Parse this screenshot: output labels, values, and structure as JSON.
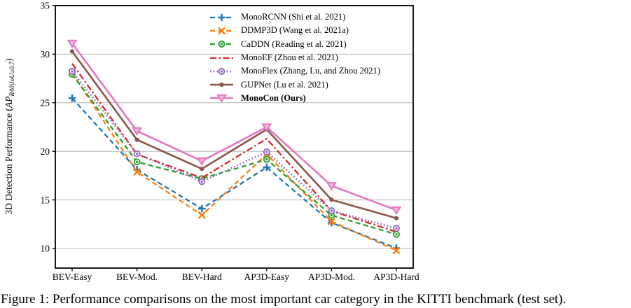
{
  "figure_caption": "Figure 1: Performance comparisons on the most important car category in the KITTI benchmark (test set).",
  "ylabel": {
    "prefix": "3D Detection Performance (",
    "ap": "AP",
    "subscript": "R40|IoU≥0.7",
    "suffix": ")"
  },
  "chart_data": {
    "type": "line",
    "title": "",
    "xlabel": "",
    "ylabel": "3D Detection Performance (AP_R40|IoU>=0.7)",
    "categories": [
      "BEV-Easy",
      "BEV-Mod.",
      "BEV-Hard",
      "AP3D-Easy",
      "AP3D-Mod.",
      "AP3D-Hard"
    ],
    "yticks": [
      10,
      15,
      20,
      25,
      30,
      35
    ],
    "ylim": [
      8,
      35
    ],
    "grid": true,
    "legend_position": "upper right",
    "series": [
      {
        "name": "MonoRCNN (Shi et al. 2021)",
        "color": "#1f77b4",
        "linestyle": "dashed",
        "marker": "plus",
        "bold": false,
        "values": [
          25.48,
          18.11,
          14.1,
          18.36,
          12.65,
          10.03
        ]
      },
      {
        "name": "DDMP3D (Wang et al. 2021a)",
        "color": "#ff7f0e",
        "linestyle": "dashed",
        "marker": "x",
        "bold": false,
        "values": [
          28.08,
          17.89,
          13.44,
          19.71,
          12.78,
          9.8
        ]
      },
      {
        "name": "CaDDN (Reading et al. 2021)",
        "color": "#2ca02c",
        "linestyle": "dashed",
        "marker": "ring-dot",
        "bold": false,
        "values": [
          27.94,
          18.91,
          17.19,
          19.17,
          13.41,
          11.46
        ]
      },
      {
        "name": "MonoEF (Zhou et al. 2021)",
        "color": "#d62728",
        "linestyle": "dashdot",
        "marker": "none",
        "bold": false,
        "values": [
          29.03,
          19.7,
          17.26,
          21.29,
          13.87,
          11.71
        ]
      },
      {
        "name": "MonoFlex (Zhang, Lu, and Zhou 2021)",
        "color": "#9467bd",
        "linestyle": "dotted",
        "marker": "ring-dot",
        "bold": false,
        "values": [
          28.23,
          19.75,
          16.89,
          19.94,
          13.89,
          12.07
        ]
      },
      {
        "name": "GUPNet (Lu et al. 2021)",
        "color": "#8c564b",
        "linestyle": "solid",
        "marker": "dot",
        "bold": false,
        "values": [
          30.29,
          21.19,
          18.2,
          22.26,
          15.02,
          13.12
        ]
      },
      {
        "name": "MonoCon (Ours)",
        "color": "#e377c2",
        "linestyle": "solid",
        "marker": "triangle-down",
        "bold": true,
        "values": [
          31.12,
          22.1,
          19.0,
          22.5,
          16.46,
          13.95
        ]
      }
    ]
  }
}
